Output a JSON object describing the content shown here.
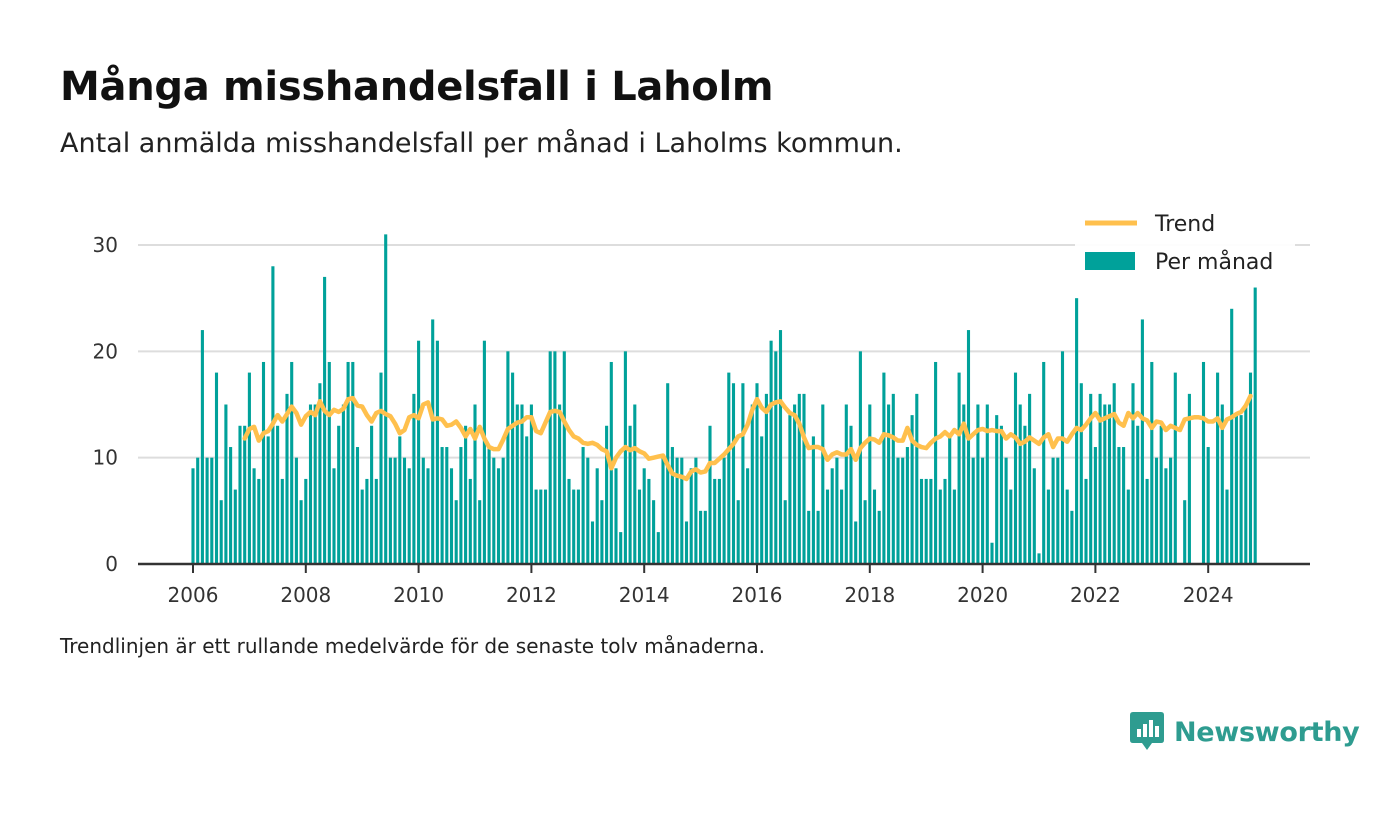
{
  "title": "Många misshandelsfall i Laholm",
  "subtitle": "Antal anmälda misshandelsfall per månad i Laholms kommun.",
  "note": "Trendlinjen är ett rullande medelvärde för de senaste tolv månaderna.",
  "brand": {
    "name": "Newsworthy",
    "color": "#2e9c90",
    "icon": "newsworthy-logo-icon"
  },
  "colors": {
    "bars": "#00a19a",
    "trend": "#ffc04d",
    "grid": "#dddddd",
    "axis": "#333333"
  },
  "chart_data": {
    "type": "bar",
    "x_unit": "month",
    "x_start": "2006-01",
    "x_ticks": [
      2006,
      2008,
      2010,
      2012,
      2014,
      2016,
      2018,
      2020,
      2022,
      2024
    ],
    "y_ticks": [
      0,
      10,
      20,
      30
    ],
    "ylim": [
      0,
      31
    ],
    "grid": true,
    "legend": {
      "placement": "top-right",
      "items": [
        {
          "key": "trend",
          "label": "Trend"
        },
        {
          "key": "bars",
          "label": "Per månad"
        }
      ]
    },
    "series": [
      {
        "name": "Per månad",
        "type": "bar",
        "values": [
          9,
          10,
          22,
          10,
          10,
          18,
          6,
          15,
          11,
          7,
          13,
          13,
          18,
          9,
          8,
          19,
          12,
          28,
          13,
          8,
          16,
          19,
          10,
          6,
          8,
          15,
          15,
          17,
          27,
          19,
          9,
          13,
          15,
          19,
          19,
          11,
          7,
          8,
          13,
          8,
          18,
          31,
          10,
          10,
          12,
          10,
          9,
          16,
          21,
          10,
          9,
          23,
          21,
          11,
          11,
          9,
          6,
          11,
          13,
          8,
          15,
          6,
          21,
          11,
          10,
          9,
          10,
          20,
          18,
          15,
          15,
          12,
          15,
          7,
          7,
          7,
          20,
          20,
          15,
          20,
          8,
          7,
          7,
          11,
          10,
          4,
          9,
          6,
          13,
          19,
          9,
          3,
          20,
          13,
          15,
          7,
          9,
          8,
          6,
          3,
          10,
          17,
          11,
          10,
          10,
          4,
          9,
          10,
          5,
          5,
          13,
          8,
          8,
          10,
          18,
          17,
          6,
          17,
          9,
          15,
          17,
          12,
          16,
          21,
          20,
          22,
          6,
          14,
          15,
          16,
          16,
          5,
          12,
          5,
          15,
          7,
          9,
          10,
          7,
          15,
          13,
          4,
          20,
          6,
          15,
          7,
          5,
          18,
          15,
          16,
          10,
          10,
          11,
          14,
          16,
          8,
          8,
          8,
          19,
          7,
          8,
          12,
          7,
          18,
          15,
          22,
          10,
          15,
          10,
          15,
          2,
          14,
          13,
          10,
          7,
          18,
          15,
          13,
          16,
          9,
          1,
          19,
          7,
          10,
          10,
          20,
          7,
          5,
          25,
          17,
          8,
          16,
          11,
          16,
          15,
          15,
          17,
          11,
          11,
          7,
          17,
          13,
          23,
          8,
          19,
          10,
          13,
          9,
          10,
          18,
          0,
          6,
          16,
          0,
          0,
          19,
          11,
          0,
          18,
          15,
          7,
          24,
          14,
          14,
          15,
          18,
          26
        ]
      },
      {
        "name": "Trend",
        "type": "line",
        "start_index": 11,
        "values": [
          11.8,
          12.7,
          12.9,
          11.6,
          12.3,
          12.5,
          13.2,
          14.0,
          13.4,
          14.1,
          14.8,
          14.2,
          13.1,
          13.9,
          14.3,
          14.0,
          15.3,
          14.4,
          14.0,
          14.5,
          14.3,
          14.6,
          15.5,
          15.6,
          14.9,
          14.8,
          14.0,
          13.4,
          14.2,
          14.4,
          14.1,
          13.9,
          13.2,
          12.3,
          12.6,
          13.8,
          14.0,
          13.7,
          15.0,
          15.2,
          13.6,
          13.7,
          13.6,
          13.0,
          13.1,
          13.4,
          12.8,
          12.0,
          12.7,
          11.8,
          12.9,
          11.8,
          11.0,
          10.8,
          10.8,
          11.7,
          12.7,
          13.0,
          13.3,
          13.4,
          13.8,
          13.8,
          12.5,
          12.3,
          13.3,
          14.3,
          14.4,
          14.3,
          13.4,
          12.6,
          12.0,
          11.8,
          11.4,
          11.3,
          11.4,
          11.2,
          10.8,
          10.6,
          9.0,
          10.0,
          10.6,
          11.0,
          10.7,
          10.9,
          10.6,
          10.4,
          9.9,
          10.0,
          10.1,
          10.2,
          9.3,
          8.5,
          8.3,
          8.2,
          8.0,
          8.7,
          8.9,
          8.6,
          8.7,
          9.5,
          9.5,
          9.9,
          10.3,
          10.8,
          11.3,
          12.0,
          12.2,
          13.1,
          14.5,
          15.5,
          14.7,
          14.3,
          15.0,
          15.2,
          15.3,
          14.7,
          14.2,
          14.0,
          13.2,
          11.9,
          10.9,
          11.0,
          11.0,
          10.8,
          9.8,
          10.3,
          10.5,
          10.3,
          10.3,
          10.8,
          9.8,
          10.9,
          11.4,
          11.8,
          11.7,
          11.4,
          12.2,
          12.1,
          11.9,
          11.6,
          11.6,
          12.8,
          11.6,
          11.2,
          11.0,
          10.9,
          11.4,
          11.8,
          12.0,
          12.4,
          12.0,
          12.6,
          12.2,
          13.2,
          11.8,
          12.2,
          12.6,
          12.7,
          12.5,
          12.6,
          12.5,
          12.5,
          11.8,
          12.2,
          11.9,
          11.3,
          11.5,
          11.9,
          11.6,
          11.3,
          11.9,
          12.2,
          11.0,
          11.8,
          11.8,
          11.5,
          12.2,
          12.8,
          12.6,
          13.1,
          13.7,
          14.2,
          13.5,
          13.7,
          13.9,
          14.1,
          13.3,
          13.0,
          14.2,
          13.7,
          14.2,
          13.7,
          13.5,
          12.8,
          13.4,
          13.3,
          12.6,
          13.0,
          12.8,
          12.6,
          13.6,
          13.7,
          13.8,
          13.8,
          13.7,
          13.4,
          13.4,
          13.7,
          12.8,
          13.6,
          13.8,
          14.1,
          14.3,
          14.9,
          15.8
        ]
      }
    ]
  }
}
